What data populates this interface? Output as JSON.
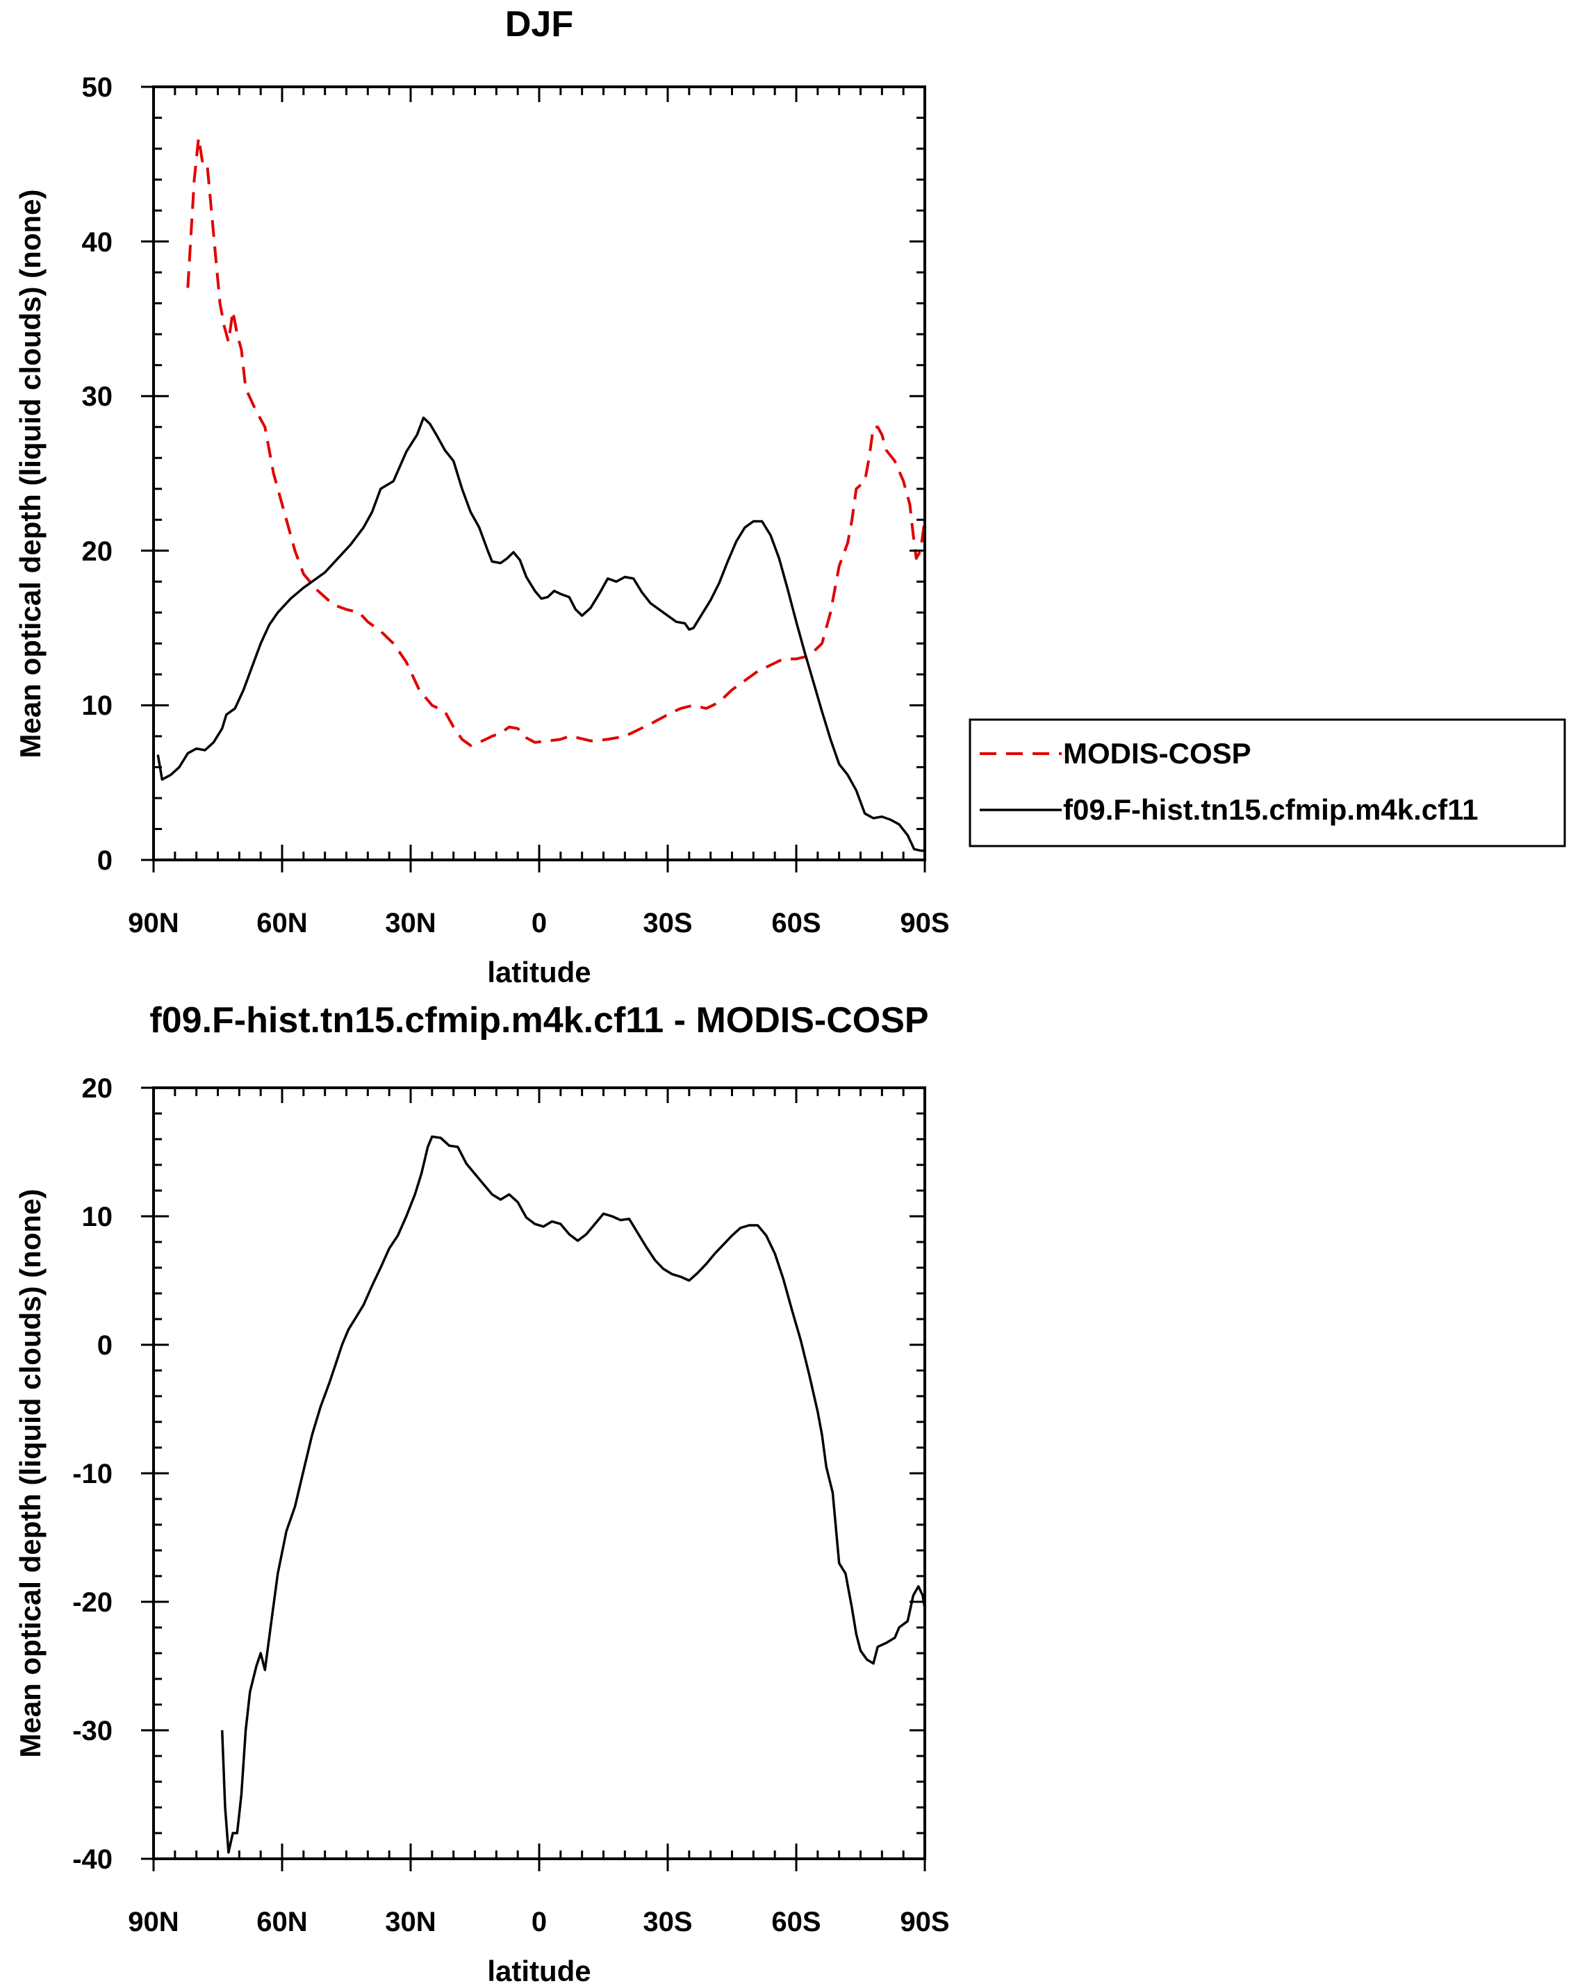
{
  "chart_data": [
    {
      "type": "line",
      "title": "DJF",
      "xlabel": "latitude",
      "ylabel": "Mean optical depth (liquid clouds) (none)",
      "xlim": [
        90,
        -90
      ],
      "ylim": [
        0,
        50
      ],
      "xticks": [
        90,
        60,
        30,
        0,
        -30,
        -60,
        -90
      ],
      "xtick_labels": [
        "90N",
        "60N",
        "30N",
        "0",
        "30S",
        "60S",
        "90S"
      ],
      "yticks": [
        0,
        10,
        20,
        30,
        40,
        50
      ],
      "ytick_labels": [
        "0",
        "10",
        "20",
        "30",
        "40",
        "50"
      ],
      "legend": "right",
      "series": [
        {
          "name": "MODIS-COSP",
          "color": "#e00000",
          "dash": "dashed",
          "points": [
            [
              82,
              37
            ],
            [
              80.5,
              44
            ],
            [
              79.5,
              46.7
            ],
            [
              78.5,
              45
            ],
            [
              77.5,
              45
            ],
            [
              76.5,
              42
            ],
            [
              75.5,
              39
            ],
            [
              74.5,
              36
            ],
            [
              73.5,
              34.5
            ],
            [
              72.5,
              33.5
            ],
            [
              71.5,
              35.5
            ],
            [
              70.5,
              34
            ],
            [
              69.5,
              33
            ],
            [
              68.5,
              30.5
            ],
            [
              66,
              29
            ],
            [
              64,
              28
            ],
            [
              62,
              25
            ],
            [
              59,
              22
            ],
            [
              57,
              20
            ],
            [
              55,
              18.5
            ],
            [
              52,
              17.5
            ],
            [
              50,
              17
            ],
            [
              48,
              16.5
            ],
            [
              45,
              16.2
            ],
            [
              42,
              16
            ],
            [
              40,
              15.4
            ],
            [
              37,
              14.8
            ],
            [
              34,
              14
            ],
            [
              31,
              12.8
            ],
            [
              28,
              11
            ],
            [
              25,
              10
            ],
            [
              22,
              9.6
            ],
            [
              20,
              8.6
            ],
            [
              18,
              7.8
            ],
            [
              16,
              7.4
            ],
            [
              14,
              7.6
            ],
            [
              11,
              8
            ],
            [
              9,
              8.2
            ],
            [
              7,
              8.6
            ],
            [
              5,
              8.5
            ],
            [
              3,
              7.9
            ],
            [
              1,
              7.6
            ],
            [
              -2,
              7.7
            ],
            [
              -5,
              7.8
            ],
            [
              -7,
              8
            ],
            [
              -9,
              7.9
            ],
            [
              -12,
              7.7
            ],
            [
              -16,
              7.8
            ],
            [
              -20,
              8
            ],
            [
              -23,
              8.4
            ],
            [
              -26,
              8.8
            ],
            [
              -30,
              9.4
            ],
            [
              -33,
              9.8
            ],
            [
              -36,
              10
            ],
            [
              -39,
              9.8
            ],
            [
              -42,
              10.2
            ],
            [
              -45,
              11
            ],
            [
              -48,
              11.6
            ],
            [
              -51,
              12.2
            ],
            [
              -54,
              12.6
            ],
            [
              -57,
              13
            ],
            [
              -60,
              13
            ],
            [
              -63,
              13.2
            ],
            [
              -66,
              14
            ],
            [
              -68,
              16
            ],
            [
              -70,
              19
            ],
            [
              -72,
              20.5
            ],
            [
              -73,
              22
            ],
            [
              -74,
              24
            ],
            [
              -76,
              24.5
            ],
            [
              -77,
              26
            ],
            [
              -78,
              28
            ],
            [
              -79,
              28
            ],
            [
              -80,
              27.5
            ],
            [
              -81,
              26.5
            ],
            [
              -83,
              25.8
            ],
            [
              -85,
              24.5
            ],
            [
              -86.5,
              23
            ],
            [
              -87.3,
              21
            ],
            [
              -88,
              19.5
            ],
            [
              -89,
              20
            ],
            [
              -90,
              22
            ]
          ]
        },
        {
          "name": "f09.F-hist.tn15.cfmip.m4k.cf11",
          "color": "#000000",
          "dash": "solid",
          "points": [
            [
              89,
              6.8
            ],
            [
              88,
              5.2
            ],
            [
              86,
              5.5
            ],
            [
              84,
              6
            ],
            [
              82,
              6.9
            ],
            [
              80,
              7.2
            ],
            [
              78,
              7.1
            ],
            [
              76,
              7.6
            ],
            [
              74,
              8.5
            ],
            [
              73,
              9.4
            ],
            [
              71,
              9.8
            ],
            [
              69,
              11
            ],
            [
              67,
              12.5
            ],
            [
              65,
              14
            ],
            [
              63,
              15.2
            ],
            [
              61,
              16
            ],
            [
              58,
              16.9
            ],
            [
              55,
              17.6
            ],
            [
              53,
              18
            ],
            [
              50,
              18.6
            ],
            [
              47,
              19.5
            ],
            [
              44,
              20.4
            ],
            [
              41,
              21.5
            ],
            [
              39,
              22.5
            ],
            [
              37,
              24
            ],
            [
              34,
              24.5
            ],
            [
              31,
              26.4
            ],
            [
              28.5,
              27.5
            ],
            [
              27,
              28.6
            ],
            [
              25.5,
              28.2
            ],
            [
              24,
              27.5
            ],
            [
              22,
              26.5
            ],
            [
              20,
              25.8
            ],
            [
              18,
              24
            ],
            [
              16,
              22.5
            ],
            [
              14,
              21.5
            ],
            [
              12,
              20
            ],
            [
              11,
              19.3
            ],
            [
              9,
              19.2
            ],
            [
              7.5,
              19.5
            ],
            [
              6,
              19.9
            ],
            [
              4.5,
              19.4
            ],
            [
              3,
              18.3
            ],
            [
              1,
              17.4
            ],
            [
              -0.5,
              16.9
            ],
            [
              -2,
              17
            ],
            [
              -3.5,
              17.4
            ],
            [
              -5,
              17.2
            ],
            [
              -7,
              17
            ],
            [
              -8.5,
              16.2
            ],
            [
              -10,
              15.8
            ],
            [
              -12,
              16.3
            ],
            [
              -14,
              17.2
            ],
            [
              -16,
              18.2
            ],
            [
              -18,
              18
            ],
            [
              -20,
              18.3
            ],
            [
              -22,
              18.2
            ],
            [
              -24,
              17.3
            ],
            [
              -26,
              16.6
            ],
            [
              -28,
              16.2
            ],
            [
              -30,
              15.8
            ],
            [
              -32,
              15.4
            ],
            [
              -34,
              15.3
            ],
            [
              -35,
              14.9
            ],
            [
              -36,
              15
            ],
            [
              -38,
              15.9
            ],
            [
              -40,
              16.8
            ],
            [
              -42,
              17.9
            ],
            [
              -44,
              19.3
            ],
            [
              -46,
              20.6
            ],
            [
              -48,
              21.5
            ],
            [
              -50,
              21.9
            ],
            [
              -52,
              21.9
            ],
            [
              -54,
              21
            ],
            [
              -56,
              19.5
            ],
            [
              -58,
              17.5
            ],
            [
              -60,
              15.4
            ],
            [
              -62,
              13.4
            ],
            [
              -64,
              11.5
            ],
            [
              -66,
              9.6
            ],
            [
              -68,
              7.8
            ],
            [
              -70,
              6.2
            ],
            [
              -72,
              5.5
            ],
            [
              -74,
              4.5
            ],
            [
              -76,
              3
            ],
            [
              -78,
              2.7
            ],
            [
              -80,
              2.8
            ],
            [
              -82,
              2.6
            ],
            [
              -84,
              2.3
            ],
            [
              -86,
              1.6
            ],
            [
              -87.5,
              0.7
            ],
            [
              -89,
              0.6
            ],
            [
              -90,
              0.6
            ]
          ]
        }
      ]
    },
    {
      "type": "line",
      "title": "f09.F-hist.tn15.cfmip.m4k.cf11 - MODIS-COSP",
      "xlabel": "latitude",
      "ylabel": "Mean optical depth (liquid clouds) (none)",
      "xlim": [
        90,
        -90
      ],
      "ylim": [
        -40,
        20
      ],
      "xticks": [
        90,
        60,
        30,
        0,
        -30,
        -60,
        -90
      ],
      "xtick_labels": [
        "90N",
        "60N",
        "30N",
        "0",
        "30S",
        "60S",
        "90S"
      ],
      "yticks": [
        -40,
        -30,
        -20,
        -10,
        0,
        10,
        20
      ],
      "ytick_labels": [
        "-40",
        "-30",
        "-20",
        "-10",
        "0",
        "10",
        "20"
      ],
      "series": [
        {
          "color": "#000000",
          "dash": "solid",
          "points": [
            [
              74,
              -30
            ],
            [
              73.3,
              -36
            ],
            [
              72.5,
              -39.5
            ],
            [
              71.5,
              -38
            ],
            [
              70.5,
              -38
            ],
            [
              69.5,
              -35
            ],
            [
              68.5,
              -30
            ],
            [
              67.5,
              -27
            ],
            [
              66,
              -25
            ],
            [
              65,
              -24
            ],
            [
              64,
              -25.3
            ],
            [
              62.5,
              -21.5
            ],
            [
              61,
              -17.8
            ],
            [
              59,
              -14.5
            ],
            [
              57,
              -12.6
            ],
            [
              55,
              -9.8
            ],
            [
              53,
              -7
            ],
            [
              51,
              -4.8
            ],
            [
              49,
              -3
            ],
            [
              47.5,
              -1.5
            ],
            [
              46,
              0
            ],
            [
              44.5,
              1.2
            ],
            [
              43,
              2
            ],
            [
              41,
              3.1
            ],
            [
              39,
              4.6
            ],
            [
              37,
              6
            ],
            [
              35,
              7.5
            ],
            [
              33,
              8.5
            ],
            [
              31,
              10
            ],
            [
              29,
              11.7
            ],
            [
              27.5,
              13.3
            ],
            [
              26,
              15.4
            ],
            [
              25,
              16.2
            ],
            [
              23,
              16.1
            ],
            [
              21,
              15.5
            ],
            [
              19,
              15.4
            ],
            [
              17,
              14.1
            ],
            [
              15,
              13.3
            ],
            [
              13,
              12.5
            ],
            [
              11,
              11.7
            ],
            [
              9,
              11.3
            ],
            [
              7,
              11.7
            ],
            [
              5,
              11.1
            ],
            [
              3,
              9.9
            ],
            [
              1,
              9.4
            ],
            [
              -1,
              9.2
            ],
            [
              -3,
              9.6
            ],
            [
              -5,
              9.4
            ],
            [
              -7,
              8.6
            ],
            [
              -9,
              8.1
            ],
            [
              -11,
              8.6
            ],
            [
              -13,
              9.4
            ],
            [
              -15,
              10.2
            ],
            [
              -17,
              10
            ],
            [
              -19,
              9.7
            ],
            [
              -21,
              9.8
            ],
            [
              -23,
              8.7
            ],
            [
              -25,
              7.6
            ],
            [
              -27,
              6.6
            ],
            [
              -29,
              5.9
            ],
            [
              -31,
              5.5
            ],
            [
              -33,
              5.3
            ],
            [
              -35,
              5
            ],
            [
              -37,
              5.6
            ],
            [
              -39,
              6.3
            ],
            [
              -41,
              7.1
            ],
            [
              -43,
              7.8
            ],
            [
              -45,
              8.5
            ],
            [
              -47,
              9.1
            ],
            [
              -49,
              9.3
            ],
            [
              -51,
              9.3
            ],
            [
              -53,
              8.5
            ],
            [
              -55,
              7.1
            ],
            [
              -57,
              5.1
            ],
            [
              -59,
              2.7
            ],
            [
              -61,
              0.4
            ],
            [
              -63,
              -2.3
            ],
            [
              -65,
              -5.2
            ],
            [
              -66,
              -7
            ],
            [
              -67,
              -9.5
            ],
            [
              -68.5,
              -11.5
            ],
            [
              -70,
              -17
            ],
            [
              -71.5,
              -17.8
            ],
            [
              -73,
              -20.5
            ],
            [
              -74,
              -22.5
            ],
            [
              -75,
              -23.8
            ],
            [
              -76.5,
              -24.5
            ],
            [
              -78,
              -24.8
            ],
            [
              -79,
              -23.5
            ],
            [
              -81,
              -23.2
            ],
            [
              -83,
              -22.8
            ],
            [
              -84,
              -22
            ],
            [
              -86,
              -21.5
            ],
            [
              -87.3,
              -19.5
            ],
            [
              -88.5,
              -18.8
            ],
            [
              -89.5,
              -19.5
            ],
            [
              -90,
              -20.5
            ]
          ]
        }
      ]
    }
  ]
}
